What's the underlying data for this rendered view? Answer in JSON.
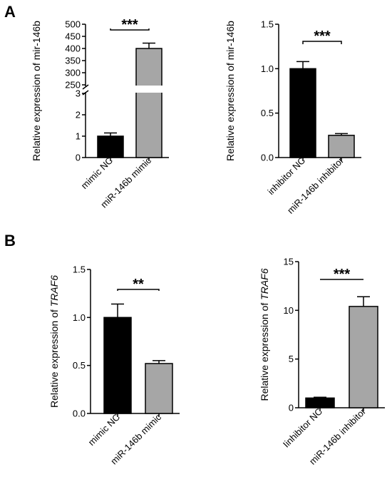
{
  "panels": [
    {
      "label": "A"
    },
    {
      "label": "B"
    }
  ],
  "chart_data": [
    {
      "type": "bar",
      "panel": "A",
      "ylabel": "Relative expression of mir-146b",
      "ylabel_parts": [
        {
          "text": "Relative expression of mir-146b",
          "italic": false
        }
      ],
      "categories": [
        "mimic NC",
        "miR-146b mimic"
      ],
      "values": [
        1.0,
        400
      ],
      "errors": [
        0.15,
        22
      ],
      "colors": [
        "#000000",
        "#a6a6a6"
      ],
      "y_axis_break": {
        "lower": [
          0,
          3
        ],
        "upper": [
          250,
          500
        ]
      },
      "yticks_lower": [
        "0",
        "1",
        "2",
        "3"
      ],
      "yticks_upper": [
        "250",
        "300",
        "350",
        "400",
        "450",
        "500"
      ],
      "significance": "***"
    },
    {
      "type": "bar",
      "panel": "A",
      "ylabel": "Relative expression of mir-146b",
      "ylabel_parts": [
        {
          "text": "Relative expression of mir-146b",
          "italic": false
        }
      ],
      "categories": [
        "inhibitor NC",
        "miR-146b inhibitor"
      ],
      "values": [
        1.0,
        0.25
      ],
      "errors": [
        0.08,
        0.02
      ],
      "colors": [
        "#000000",
        "#a6a6a6"
      ],
      "ylim": [
        0,
        1.5
      ],
      "yticks": [
        "0.0",
        "0.5",
        "1.0",
        "1.5"
      ],
      "significance": "***"
    },
    {
      "type": "bar",
      "panel": "B",
      "ylabel": "Relative expression of TRAF6",
      "ylabel_parts": [
        {
          "text": "Relative expression of ",
          "italic": false
        },
        {
          "text": "TRAF6",
          "italic": true
        }
      ],
      "categories": [
        "mimic NC",
        "miR-146b mimic"
      ],
      "values": [
        1.0,
        0.52
      ],
      "errors": [
        0.14,
        0.03
      ],
      "colors": [
        "#000000",
        "#a6a6a6"
      ],
      "ylim": [
        0,
        1.5
      ],
      "yticks": [
        "0.0",
        "0.5",
        "1.0",
        "1.5"
      ],
      "significance": "**"
    },
    {
      "type": "bar",
      "panel": "B",
      "ylabel": "Relative expression of TRAF6",
      "ylabel_parts": [
        {
          "text": "Relative expression of ",
          "italic": false
        },
        {
          "text": "TRAF6",
          "italic": true
        }
      ],
      "categories": [
        "Iinhibitor NC",
        "miR-146b inhibitor"
      ],
      "values": [
        1.0,
        10.4
      ],
      "errors": [
        0.08,
        1.0
      ],
      "colors": [
        "#000000",
        "#a6a6a6"
      ],
      "ylim": [
        0,
        15
      ],
      "yticks": [
        "0",
        "5",
        "10",
        "15"
      ],
      "significance": "***"
    }
  ]
}
